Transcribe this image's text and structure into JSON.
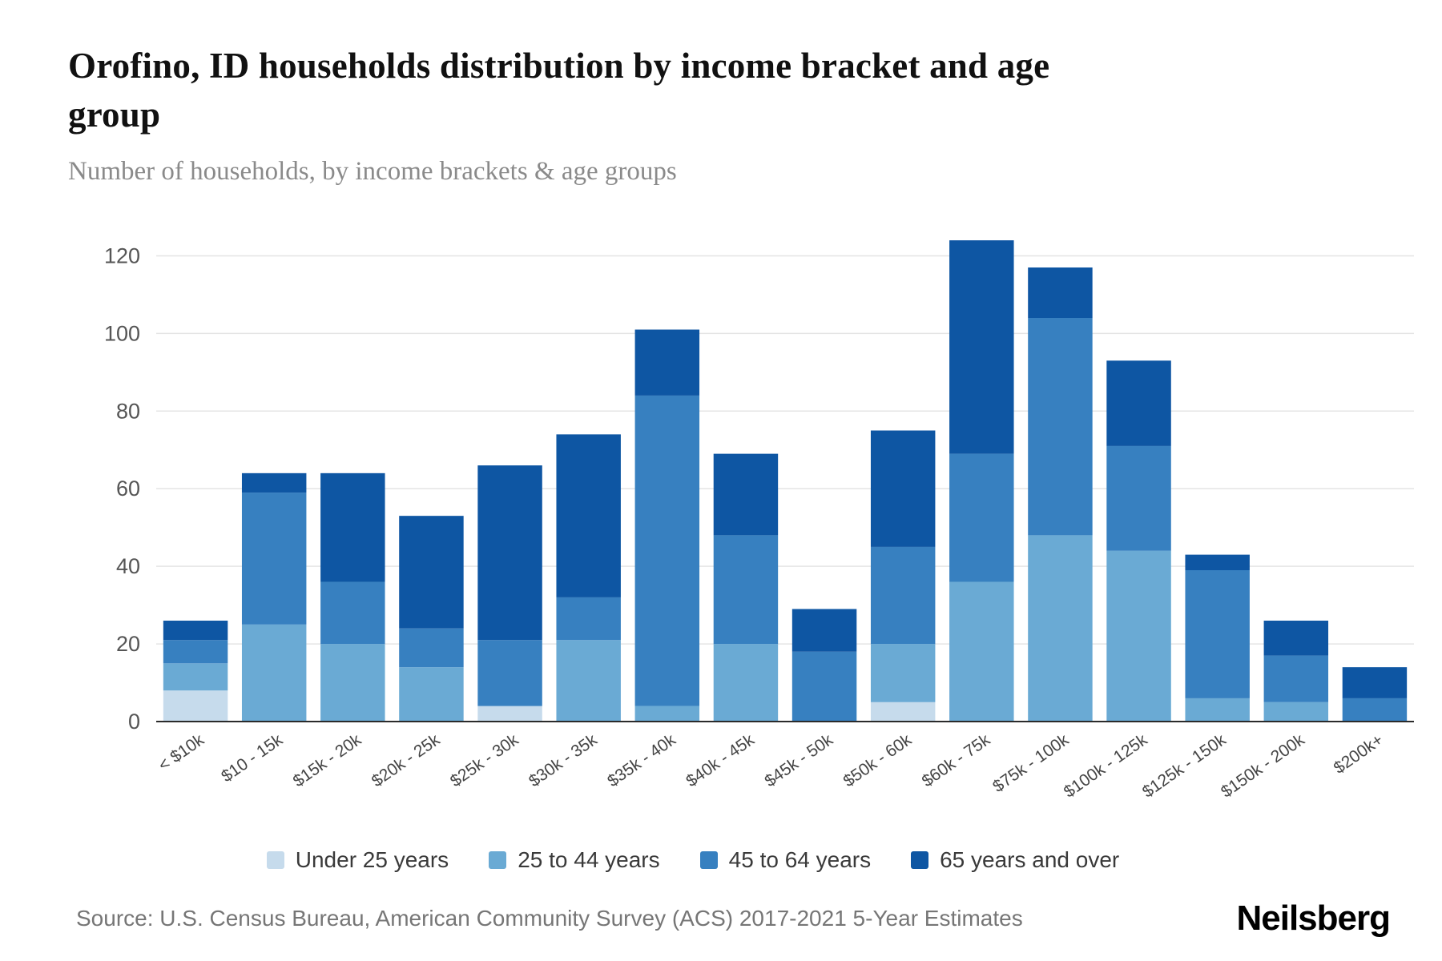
{
  "header": {
    "title": "Orofino, ID households distribution by income bracket and age group",
    "subtitle": "Number of households, by income brackets & age groups"
  },
  "footer": {
    "source": "Source: U.S. Census Bureau, American Community Survey (ACS) 2017-2021 5-Year Estimates",
    "brand": "Neilsberg"
  },
  "chart_data": {
    "type": "bar",
    "stacked": true,
    "title": "Orofino, ID households distribution by income bracket and age group",
    "subtitle": "Number of households, by income brackets & age groups",
    "xlabel": "",
    "ylabel": "",
    "ylim": [
      0,
      130
    ],
    "yticks": [
      0,
      20,
      40,
      60,
      80,
      100,
      120
    ],
    "grid": true,
    "legend_position": "bottom",
    "categories": [
      "< $10k",
      "$10 - 15k",
      "$15k - 20k",
      "$20k - 25k",
      "$25k - 30k",
      "$30k - 35k",
      "$35k - 40k",
      "$40k - 45k",
      "$45k - 50k",
      "$50k - 60k",
      "$60k - 75k",
      "$75k - 100k",
      "$100k - 125k",
      "$125k - 150k",
      "$150k - 200k",
      "$200k+"
    ],
    "series": [
      {
        "name": "Under 25 years",
        "color": "#c6dbec",
        "values": [
          8,
          0,
          0,
          0,
          4,
          0,
          0,
          0,
          0,
          5,
          0,
          0,
          0,
          0,
          0,
          0
        ]
      },
      {
        "name": "25 to 44 years",
        "color": "#6aaad4",
        "values": [
          7,
          25,
          20,
          14,
          0,
          21,
          4,
          20,
          0,
          15,
          36,
          48,
          44,
          6,
          5,
          0
        ]
      },
      {
        "name": "45 to 64 years",
        "color": "#3780c0",
        "values": [
          6,
          34,
          16,
          10,
          17,
          11,
          80,
          28,
          18,
          25,
          33,
          56,
          27,
          33,
          12,
          6
        ]
      },
      {
        "name": "65 years and over",
        "color": "#0e56a3",
        "values": [
          5,
          5,
          28,
          29,
          45,
          42,
          17,
          21,
          11,
          30,
          55,
          13,
          22,
          4,
          9,
          8
        ]
      }
    ],
    "totals": [
      26,
      64,
      64,
      53,
      66,
      74,
      101,
      69,
      29,
      75,
      124,
      117,
      93,
      43,
      26,
      14
    ]
  }
}
